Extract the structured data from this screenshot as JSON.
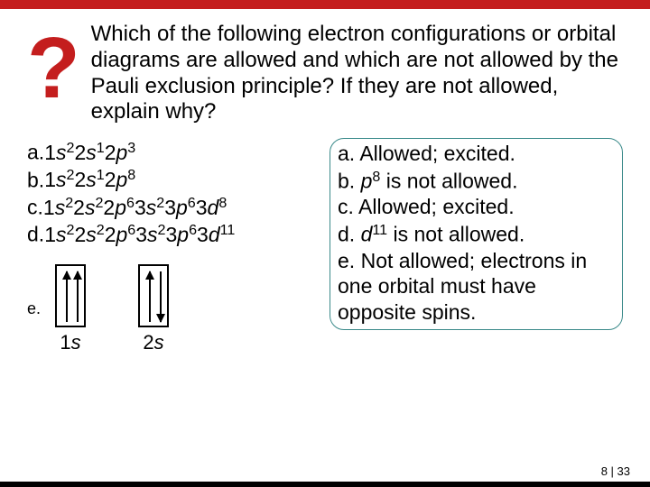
{
  "accent_color": "#c41e1e",
  "qmark": "?",
  "question": "Which of the following electron configurations or orbital diagrams are allowed and which are not allowed by the Pauli exclusion principle? If they are not allowed, explain why?",
  "options": {
    "a": {
      "letter": "a.",
      "cfg": [
        [
          "1",
          "s",
          "2"
        ],
        [
          "2",
          "s",
          "1"
        ],
        [
          "2",
          "p",
          "3"
        ]
      ]
    },
    "b": {
      "letter": "b.",
      "cfg": [
        [
          "1",
          "s",
          "2"
        ],
        [
          "2",
          "s",
          "1"
        ],
        [
          "2",
          "p",
          "8"
        ]
      ]
    },
    "c": {
      "letter": "c.",
      "cfg": [
        [
          "1",
          "s",
          "2"
        ],
        [
          "2",
          "s",
          "2"
        ],
        [
          "2",
          "p",
          "6"
        ],
        [
          "3",
          "s",
          "2"
        ],
        [
          "3",
          "p",
          "6"
        ],
        [
          "3",
          "d",
          "8"
        ]
      ]
    },
    "d": {
      "letter": "d.",
      "cfg": [
        [
          "1",
          "s",
          "2"
        ],
        [
          "2",
          "s",
          "2"
        ],
        [
          "2",
          "p",
          "6"
        ],
        [
          "3",
          "s",
          "2"
        ],
        [
          "3",
          "p",
          "6"
        ],
        [
          "3",
          "d",
          "11"
        ]
      ]
    }
  },
  "orbital": {
    "letter": "e.",
    "boxes": [
      {
        "label_n": "1",
        "label_l": "s",
        "arrows": [
          "up",
          "up"
        ]
      },
      {
        "label_n": "2",
        "label_l": "s",
        "arrows": [
          "up",
          "down"
        ]
      }
    ]
  },
  "answers": {
    "a": {
      "letter": "a.",
      "plain": "Allowed; excited."
    },
    "b": {
      "letter": "b.",
      "pre": " ",
      "sym_l": "p",
      "sym_sup": "8",
      "post": " is not allowed."
    },
    "c": {
      "letter": "c.",
      "plain": "Allowed; excited."
    },
    "d": {
      "letter": "d.",
      "pre": " ",
      "sym_l": "d",
      "sym_sup": "11",
      "post": " is not allowed."
    },
    "e": {
      "letter": "e.",
      "plain": "Not allowed; electrons in one orbital must have opposite spins."
    }
  },
  "footer": {
    "page": "8",
    "sep": " | ",
    "total": "33"
  }
}
